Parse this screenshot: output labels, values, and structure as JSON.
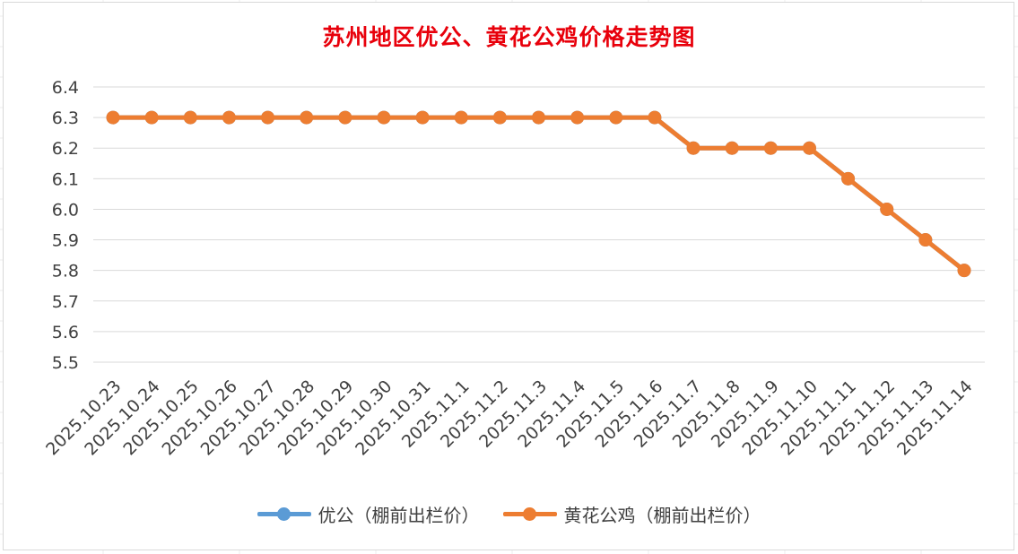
{
  "chart_data": {
    "type": "line",
    "title": "苏州地区优公、黄花公鸡价格走势图",
    "categories": [
      "2025.10.23",
      "2025.10.24",
      "2025.10.25",
      "2025.10.26",
      "2025.10.27",
      "2025.10.28",
      "2025.10.29",
      "2025.10.30",
      "2025.10.31",
      "2025.11.1",
      "2025.11.2",
      "2025.11.3",
      "2025.11.4",
      "2025.11.5",
      "2025.11.6",
      "2025.11.7",
      "2025.11.8",
      "2025.11.9",
      "2025.11.10",
      "2025.11.11",
      "2025.11.12",
      "2025.11.13",
      "2025.11.14"
    ],
    "series": [
      {
        "name": "优公（棚前出栏价）",
        "color": "#5b9bd5",
        "values": [
          6.3,
          6.3,
          6.3,
          6.3,
          6.3,
          6.3,
          6.3,
          6.3,
          6.3,
          6.3,
          6.3,
          6.3,
          6.3,
          6.3,
          6.3,
          6.2,
          6.2,
          6.2,
          6.2,
          6.1,
          6.0,
          5.9,
          5.8
        ]
      },
      {
        "name": "黄花公鸡（棚前出栏价）",
        "color": "#ed7d31",
        "values": [
          6.3,
          6.3,
          6.3,
          6.3,
          6.3,
          6.3,
          6.3,
          6.3,
          6.3,
          6.3,
          6.3,
          6.3,
          6.3,
          6.3,
          6.3,
          6.2,
          6.2,
          6.2,
          6.2,
          6.1,
          6.0,
          5.9,
          5.8
        ]
      }
    ],
    "ylim": [
      5.5,
      6.4
    ],
    "yticks": [
      "5.5",
      "5.6",
      "5.7",
      "5.8",
      "5.9",
      "6.0",
      "6.1",
      "6.2",
      "6.3",
      "6.4"
    ],
    "grid": true,
    "legend": "bottom"
  }
}
